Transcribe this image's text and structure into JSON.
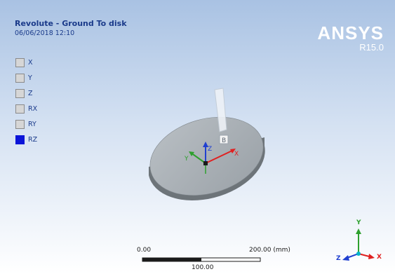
{
  "header": {
    "title": "Revolute - Ground To disk",
    "timestamp": "06/06/2018 12:10"
  },
  "brand": {
    "name": "ANSYS",
    "version": "R15.0"
  },
  "dof_legend": {
    "items": [
      {
        "label": "X",
        "active": false
      },
      {
        "label": "Y",
        "active": false
      },
      {
        "label": "Z",
        "active": false
      },
      {
        "label": "RX",
        "active": false
      },
      {
        "label": "RY",
        "active": false
      },
      {
        "label": "RZ",
        "active": true
      }
    ]
  },
  "joint": {
    "label": "B"
  },
  "joint_axes": {
    "x_label": "X",
    "y_label": "Y",
    "z_label": "Z"
  },
  "scale_bar": {
    "left_label": "0.00",
    "right_label": "200.00 (mm)",
    "mid_label": "100.00"
  },
  "triad": {
    "x_label": "X",
    "y_label": "Y",
    "z_label": "Z"
  },
  "colors": {
    "x_axis": "#e02020",
    "y_axis": "#2ea02e",
    "z_axis": "#2040d0",
    "active_dof": "#0a14d8",
    "disk_top": "#a7adb2",
    "disk_side": "#6d7479"
  }
}
